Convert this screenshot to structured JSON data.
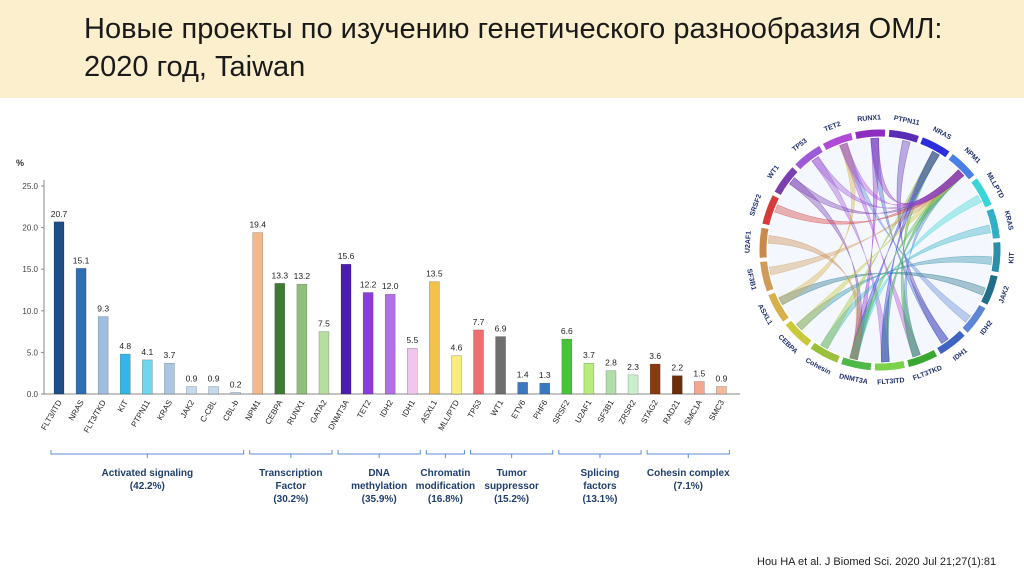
{
  "slide": {
    "title": "Новые проекты по изучению генетического разнообразия ОМЛ: 2020 год, Taiwan",
    "citation": "Hou HA et al. J Biomed Sci. 2020 Jul 21;27(1):81"
  },
  "chart_data": [
    {
      "type": "bar",
      "title": "",
      "ylabel": "%",
      "ylim": [
        0,
        25
      ],
      "yticks": [
        "0.0",
        "5.0",
        "10.0",
        "15.0",
        "20.0",
        "25.0"
      ],
      "categories": [
        "FLT3/ITD",
        "NRAS",
        "FLT3/TKD",
        "KIT",
        "PTPN11",
        "KRAS",
        "JAK2",
        "C-CBL",
        "CBL-b",
        "NPM1",
        "CEBPA",
        "RUNX1",
        "GATA2",
        "DNMT3A",
        "TET2",
        "IDH2",
        "IDH1",
        "ASXL1",
        "MLL/PTD",
        "TP53",
        "WT1",
        "ETV6",
        "PHF6",
        "SRSF2",
        "U2AF1",
        "SF3B1",
        "ZRSR2",
        "STAG2",
        "RAD21",
        "SMC1A",
        "SMC3"
      ],
      "values": [
        20.7,
        15.1,
        9.3,
        4.8,
        4.1,
        3.7,
        0.9,
        0.9,
        0.2,
        19.4,
        13.3,
        13.2,
        7.5,
        15.6,
        12.2,
        12.0,
        5.5,
        13.5,
        4.6,
        7.7,
        6.9,
        1.4,
        1.3,
        6.6,
        3.7,
        2.8,
        2.3,
        3.6,
        2.2,
        1.5,
        0.9
      ],
      "value_labels": [
        "20.7",
        "15.1",
        "9.3",
        "4.8",
        "4.1",
        "3.7",
        "0.9",
        "0.9",
        "0.2",
        "19.4",
        "13.3",
        "13.2",
        "7.5",
        "15.6",
        "12.2",
        "12.0",
        "5.5",
        "13.5",
        "4.6",
        "7.7",
        "6.9",
        "1.4",
        "1.3",
        "6.6",
        "3.7",
        "2.8",
        "2.3",
        "3.6",
        "2.2",
        "1.5",
        "0.9"
      ],
      "colors": [
        "#1d4f86",
        "#2f6fb2",
        "#9fbde0",
        "#33b5e8",
        "#6fd6ee",
        "#a9c7e3",
        "#c5d9ee",
        "#c5d9ee",
        "#c5d9ee",
        "#f4b98a",
        "#3f7a35",
        "#8fbf7a",
        "#b7dea0",
        "#4b1db0",
        "#8d3bd9",
        "#b070e6",
        "#f1c6ee",
        "#f3c24d",
        "#f8ec7c",
        "#ee6f6f",
        "#6f6f6f",
        "#3a78c0",
        "#3a78c0",
        "#45c43a",
        "#b8ec7c",
        "#b2dca8",
        "#c9f0c9",
        "#8a3a10",
        "#6b2c08",
        "#f4a68f",
        "#f4b89a"
      ],
      "groups": [
        {
          "name": "Activated signaling",
          "pct": "(42.2%)",
          "first": 0,
          "last": 8
        },
        {
          "name": "Transcription Factor",
          "pct": "(30.2%)",
          "first": 9,
          "last": 12
        },
        {
          "name": "DNA methylation",
          "pct": "(35.9%)",
          "first": 13,
          "last": 16
        },
        {
          "name": "Chromatin modification",
          "pct": "(16.8%)",
          "first": 17,
          "last": 18
        },
        {
          "name": "Tumor suppressor",
          "pct": "(15.2%)",
          "first": 19,
          "last": 22
        },
        {
          "name": "Splicing factors",
          "pct": "(13.1%)",
          "first": 23,
          "last": 26
        },
        {
          "name": "Cohesin complex",
          "pct": "(7.1%)",
          "first": 27,
          "last": 30
        }
      ]
    },
    {
      "type": "chord",
      "title": "",
      "segments": [
        {
          "label": "WT1",
          "color": "#7a3fb0"
        },
        {
          "label": "TP53",
          "color": "#9d5ad6"
        },
        {
          "label": "TET2",
          "color": "#b04bd8"
        },
        {
          "label": "RUNX1",
          "color": "#8e2bc0"
        },
        {
          "label": "PTPN11",
          "color": "#5a2bb6"
        },
        {
          "label": "NRAS",
          "color": "#2d2de0"
        },
        {
          "label": "NPM1",
          "color": "#4a7fe6"
        },
        {
          "label": "MLLPTD",
          "color": "#3ad6d6"
        },
        {
          "label": "KRAS",
          "color": "#2fb0c6"
        },
        {
          "label": "KIT",
          "color": "#2a8fa8"
        },
        {
          "label": "JAK2",
          "color": "#1f6f8a"
        },
        {
          "label": "IDH2",
          "color": "#5d86d6"
        },
        {
          "label": "IDH1",
          "color": "#3f63c2"
        },
        {
          "label": "FLT3TKD",
          "color": "#38a830"
        },
        {
          "label": "FLT3ITD",
          "color": "#7ad24a"
        },
        {
          "label": "DNMT3A",
          "color": "#4fb84a"
        },
        {
          "label": "Cohesin",
          "color": "#9ac03a"
        },
        {
          "label": "CEBPA",
          "color": "#c9c93a"
        },
        {
          "label": "ASXL1",
          "color": "#d6b048"
        },
        {
          "label": "SF3B1",
          "color": "#d09a5a"
        },
        {
          "label": "U2AF1",
          "color": "#c8894a"
        },
        {
          "label": "SRSF2",
          "color": "#d63a3a"
        }
      ]
    }
  ]
}
